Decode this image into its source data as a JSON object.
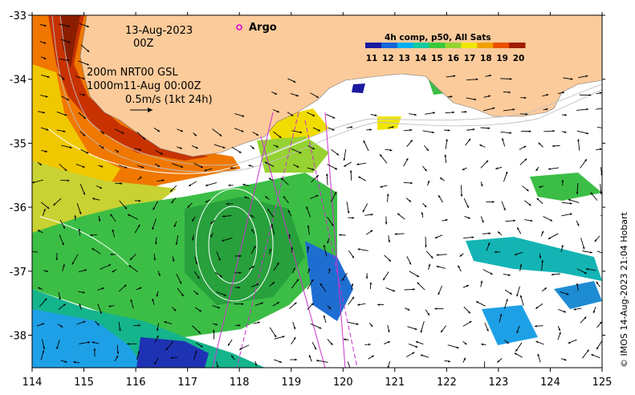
{
  "map": {
    "date_label": "13-Aug-2023",
    "time_label": "00Z",
    "legend_line1": "200m  NRT00 GSL",
    "legend_line2": "1000m11-Aug 00:00Z",
    "scale_label": "0.5m/s (1kt 24h)",
    "argo_label": "Argo",
    "colorbar_title": "4h comp, p50, All Sats",
    "colorbar_ticks": [
      "11",
      "12",
      "13",
      "14",
      "15",
      "16",
      "17",
      "18",
      "19",
      "20"
    ],
    "credit": "© IMOS 14-Aug-2023 21:04 Hobart",
    "x_ticks": [
      "114",
      "115",
      "116",
      "117",
      "118",
      "119",
      "120",
      "121",
      "122",
      "123",
      "124",
      "125"
    ],
    "y_ticks": [
      "-33",
      "-34",
      "-35",
      "-36",
      "-37",
      "-38"
    ]
  },
  "colors": {
    "land": "#FCCB9B",
    "argo": "#E000E0",
    "track": "#CC33CC",
    "scale_stops": [
      "#1a1aa0",
      "#1565d8",
      "#00b0f0",
      "#14c8a0",
      "#3cc83c",
      "#96d232",
      "#f0e600",
      "#f0a000",
      "#e85000",
      "#a01e00"
    ]
  }
}
